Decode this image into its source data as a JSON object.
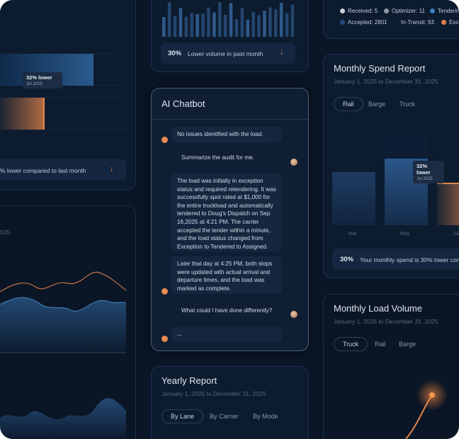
{
  "top_left_card": {
    "tooltip_value": "32% lower",
    "tooltip_date": "Jul 2025",
    "summary": "% lower compared to last month"
  },
  "left_chart_card": {
    "date_fragment": "025"
  },
  "volume_card": {
    "percent": "30%",
    "summary": "Lower volume in past month"
  },
  "status_legend": {
    "items": [
      "Received: 5",
      "Optimizer: 11",
      "Tenderin",
      "Accepted: 2801",
      "In-Transit: 93",
      "Exce"
    ]
  },
  "chatbot": {
    "title": "AI Chatbot",
    "messages": [
      "No issues identified with the load.",
      "Summarize the audit for me.",
      "The load was initially in exception status and required retendering. It was successfully spot rated at $1,000 for the entire truckload and automatically tendered to Doug's Dispatch on Sep 16,2025 at 4:21 PM. The carrier accepted the tender within a minute, and the load status changed from Exception to Tendered to Assigned.",
      "Later that day at 4:25 PM, both stops were updated with actual arrival and departure times, and the load was marked as complete.",
      "What could I have done differently?",
      "..."
    ]
  },
  "spend_report": {
    "title": "Monthly Spend Report",
    "date_range": "January 1, 2025 to December 31, 2025",
    "tabs": [
      "Rail",
      "Barge",
      "Truck"
    ],
    "tooltip_value": "32% lower",
    "tooltip_date": "Jul 2025",
    "x_labels": [
      "Mar",
      "May",
      "Jul"
    ],
    "percent": "30%",
    "summary": "Your monthly spend is 30% lower com"
  },
  "load_volume": {
    "title": "Monthly Load Volume",
    "date_range": "January 1, 2025 to December 31, 2025",
    "tabs": [
      "Truck",
      "Rail",
      "Barge"
    ]
  },
  "yearly_report": {
    "title": "Yearly Report",
    "date_range": "January 1, 2025 to December 31, 2025",
    "tabs": [
      "By Lane",
      "By Carrier",
      "By Mode"
    ]
  }
}
